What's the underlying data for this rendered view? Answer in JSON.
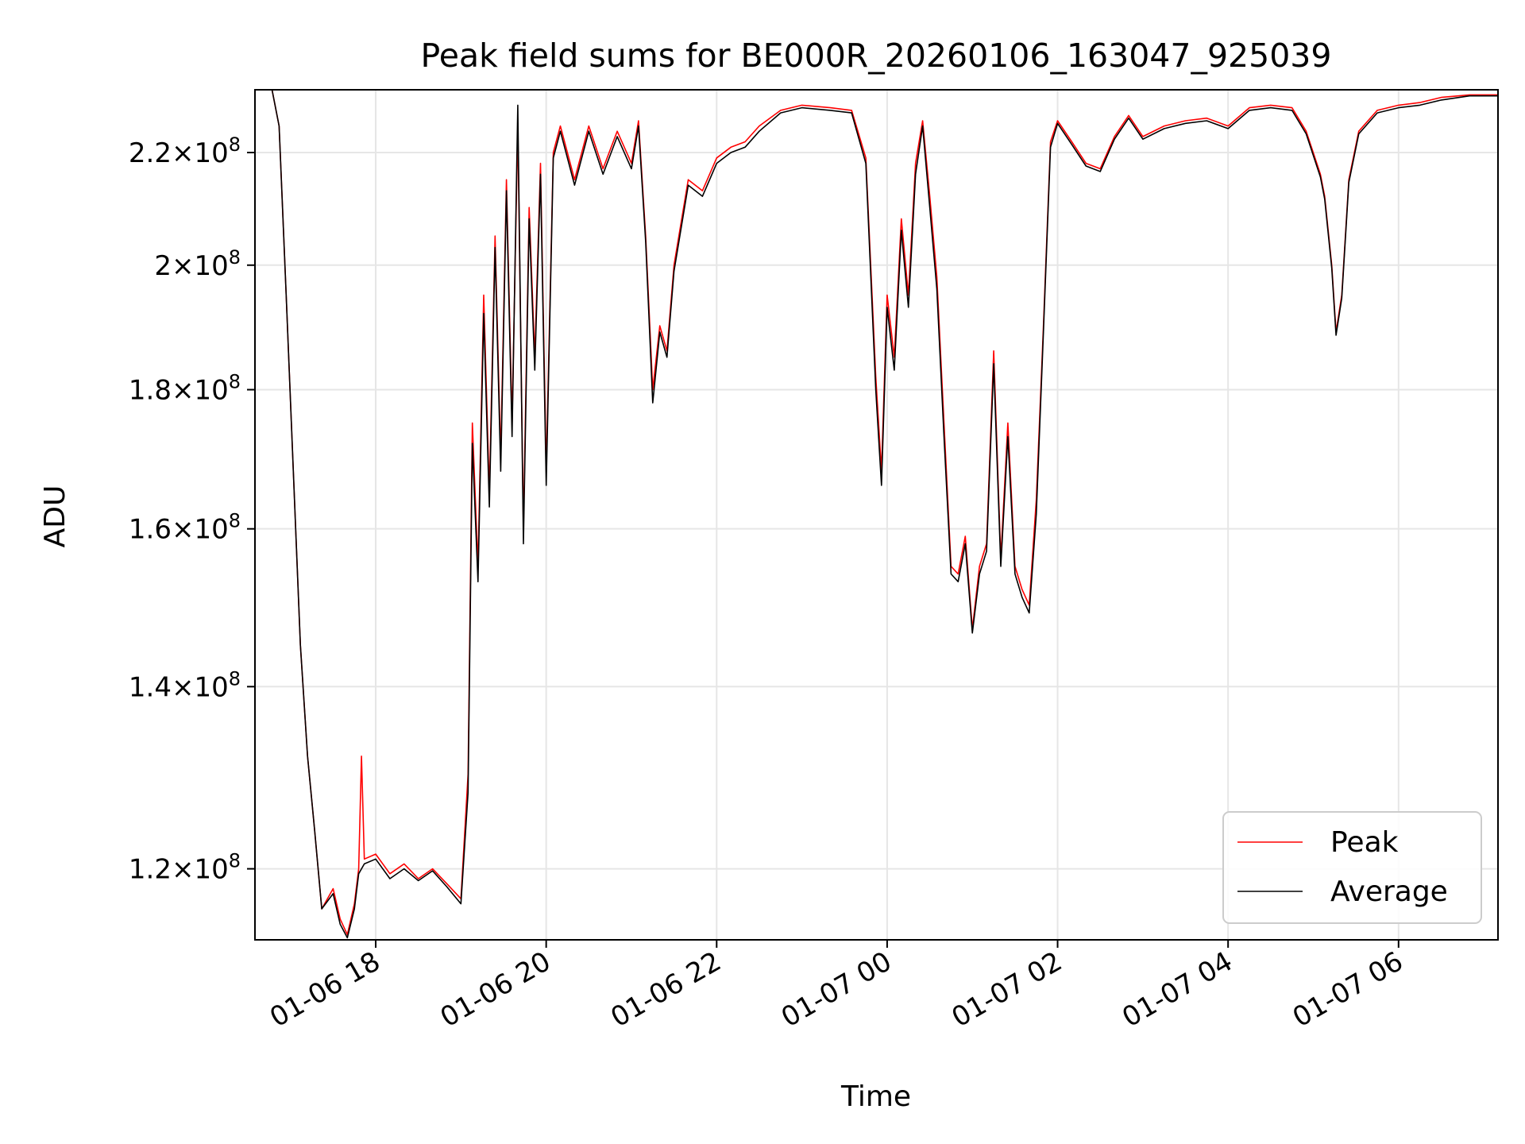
{
  "chart_data": {
    "type": "line",
    "title": "Peak field sums for BE000R_20260106_163047_925039",
    "xlabel": "Time",
    "ylabel": "ADU",
    "y_scale": "log",
    "ylim": [
      113000000,
      232000000
    ],
    "xlim": [
      "2026-01-06 16:35",
      "2026-01-07 07:10"
    ],
    "grid": true,
    "legend_position": "lower-right",
    "x_ticks": [
      {
        "value": "2026-01-06 18:00",
        "label": "01-06 18"
      },
      {
        "value": "2026-01-06 20:00",
        "label": "01-06 20"
      },
      {
        "value": "2026-01-06 22:00",
        "label": "01-06 22"
      },
      {
        "value": "2026-01-07 00:00",
        "label": "01-07 00"
      },
      {
        "value": "2026-01-07 02:00",
        "label": "01-07 02"
      },
      {
        "value": "2026-01-07 04:00",
        "label": "01-07 04"
      },
      {
        "value": "2026-01-07 06:00",
        "label": "01-07 06"
      }
    ],
    "y_ticks": [
      {
        "value": 120000000,
        "mantissa": "1.2",
        "exponent": "8"
      },
      {
        "value": 140000000,
        "mantissa": "1.4",
        "exponent": "8"
      },
      {
        "value": 160000000,
        "mantissa": "1.6",
        "exponent": "8"
      },
      {
        "value": 180000000,
        "mantissa": "1.8",
        "exponent": "8"
      },
      {
        "value": 200000000,
        "mantissa": "2",
        "exponent": "8"
      },
      {
        "value": 220000000,
        "mantissa": "2.2",
        "exponent": "8"
      }
    ],
    "series": [
      {
        "name": "Peak",
        "color": "#ff0000",
        "points": [
          [
            "2026-01-06 16:47",
            232000000
          ],
          [
            "2026-01-06 16:52",
            225000000
          ],
          [
            "2026-01-06 16:57",
            195000000
          ],
          [
            "2026-01-06 17:02",
            168000000
          ],
          [
            "2026-01-06 17:07",
            145000000
          ],
          [
            "2026-01-06 17:12",
            132000000
          ],
          [
            "2026-01-06 17:17",
            124000000
          ],
          [
            "2026-01-06 17:22",
            116000000
          ],
          [
            "2026-01-06 17:30",
            118000000
          ],
          [
            "2026-01-06 17:35",
            115000000
          ],
          [
            "2026-01-06 17:40",
            113500000
          ],
          [
            "2026-01-06 17:45",
            116500000
          ],
          [
            "2026-01-06 17:48",
            120000000
          ],
          [
            "2026-01-06 17:50",
            132000000
          ],
          [
            "2026-01-06 17:52",
            121000000
          ],
          [
            "2026-01-06 18:00",
            121500000
          ],
          [
            "2026-01-06 18:10",
            119500000
          ],
          [
            "2026-01-06 18:20",
            120500000
          ],
          [
            "2026-01-06 18:30",
            119000000
          ],
          [
            "2026-01-06 18:40",
            120000000
          ],
          [
            "2026-01-06 18:50",
            118500000
          ],
          [
            "2026-01-06 19:00",
            117000000
          ],
          [
            "2026-01-06 19:05",
            130000000
          ],
          [
            "2026-01-06 19:08",
            175000000
          ],
          [
            "2026-01-06 19:12",
            155000000
          ],
          [
            "2026-01-06 19:16",
            195000000
          ],
          [
            "2026-01-06 19:20",
            165000000
          ],
          [
            "2026-01-06 19:24",
            205000000
          ],
          [
            "2026-01-06 19:28",
            170000000
          ],
          [
            "2026-01-06 19:32",
            215000000
          ],
          [
            "2026-01-06 19:36",
            175000000
          ],
          [
            "2026-01-06 19:40",
            225000000
          ],
          [
            "2026-01-06 19:44",
            160000000
          ],
          [
            "2026-01-06 19:48",
            210000000
          ],
          [
            "2026-01-06 19:52",
            185000000
          ],
          [
            "2026-01-06 19:56",
            218000000
          ],
          [
            "2026-01-06 20:00",
            168000000
          ],
          [
            "2026-01-06 20:05",
            220000000
          ],
          [
            "2026-01-06 20:10",
            225000000
          ],
          [
            "2026-01-06 20:20",
            215000000
          ],
          [
            "2026-01-06 20:30",
            225000000
          ],
          [
            "2026-01-06 20:40",
            217000000
          ],
          [
            "2026-01-06 20:50",
            224000000
          ],
          [
            "2026-01-06 21:00",
            218000000
          ],
          [
            "2026-01-06 21:05",
            226000000
          ],
          [
            "2026-01-06 21:10",
            205000000
          ],
          [
            "2026-01-06 21:15",
            180000000
          ],
          [
            "2026-01-06 21:20",
            190000000
          ],
          [
            "2026-01-06 21:25",
            186000000
          ],
          [
            "2026-01-06 21:30",
            200000000
          ],
          [
            "2026-01-06 21:40",
            215000000
          ],
          [
            "2026-01-06 21:50",
            213000000
          ],
          [
            "2026-01-06 22:00",
            219000000
          ],
          [
            "2026-01-06 22:10",
            221000000
          ],
          [
            "2026-01-06 22:20",
            222000000
          ],
          [
            "2026-01-06 22:30",
            225000000
          ],
          [
            "2026-01-06 22:45",
            228000000
          ],
          [
            "2026-01-06 23:00",
            229000000
          ],
          [
            "2026-01-06 23:20",
            228500000
          ],
          [
            "2026-01-06 23:35",
            228000000
          ],
          [
            "2026-01-06 23:45",
            219000000
          ],
          [
            "2026-01-06 23:52",
            182000000
          ],
          [
            "2026-01-06 23:56",
            168000000
          ],
          [
            "2026-01-07 00:00",
            195000000
          ],
          [
            "2026-01-07 00:05",
            185000000
          ],
          [
            "2026-01-07 00:10",
            208000000
          ],
          [
            "2026-01-07 00:15",
            195000000
          ],
          [
            "2026-01-07 00:20",
            218000000
          ],
          [
            "2026-01-07 00:25",
            226000000
          ],
          [
            "2026-01-07 00:30",
            212000000
          ],
          [
            "2026-01-07 00:35",
            198000000
          ],
          [
            "2026-01-07 00:40",
            175000000
          ],
          [
            "2026-01-07 00:45",
            155000000
          ],
          [
            "2026-01-07 00:50",
            154000000
          ],
          [
            "2026-01-07 00:55",
            159000000
          ],
          [
            "2026-01-07 01:00",
            147000000
          ],
          [
            "2026-01-07 01:05",
            155000000
          ],
          [
            "2026-01-07 01:10",
            158000000
          ],
          [
            "2026-01-07 01:15",
            186000000
          ],
          [
            "2026-01-07 01:20",
            156000000
          ],
          [
            "2026-01-07 01:25",
            175000000
          ],
          [
            "2026-01-07 01:30",
            155000000
          ],
          [
            "2026-01-07 01:35",
            152000000
          ],
          [
            "2026-01-07 01:40",
            150000000
          ],
          [
            "2026-01-07 01:45",
            164000000
          ],
          [
            "2026-01-07 01:50",
            190000000
          ],
          [
            "2026-01-07 01:55",
            222000000
          ],
          [
            "2026-01-07 02:00",
            226000000
          ],
          [
            "2026-01-07 02:10",
            222000000
          ],
          [
            "2026-01-07 02:20",
            218000000
          ],
          [
            "2026-01-07 02:30",
            217000000
          ],
          [
            "2026-01-07 02:40",
            223000000
          ],
          [
            "2026-01-07 02:50",
            227000000
          ],
          [
            "2026-01-07 03:00",
            223000000
          ],
          [
            "2026-01-07 03:15",
            225000000
          ],
          [
            "2026-01-07 03:30",
            226000000
          ],
          [
            "2026-01-07 03:45",
            226500000
          ],
          [
            "2026-01-07 04:00",
            225000000
          ],
          [
            "2026-01-07 04:15",
            228500000
          ],
          [
            "2026-01-07 04:30",
            229000000
          ],
          [
            "2026-01-07 04:45",
            228500000
          ],
          [
            "2026-01-07 04:55",
            224000000
          ],
          [
            "2026-01-07 05:05",
            216000000
          ],
          [
            "2026-01-07 05:08",
            212000000
          ],
          [
            "2026-01-07 05:13",
            200000000
          ],
          [
            "2026-01-07 05:16",
            189000000
          ],
          [
            "2026-01-07 05:20",
            195000000
          ],
          [
            "2026-01-07 05:25",
            215000000
          ],
          [
            "2026-01-07 05:32",
            224000000
          ],
          [
            "2026-01-07 05:45",
            228000000
          ],
          [
            "2026-01-07 06:00",
            229000000
          ],
          [
            "2026-01-07 06:15",
            229500000
          ],
          [
            "2026-01-07 06:30",
            230500000
          ],
          [
            "2026-01-07 06:50",
            231000000
          ],
          [
            "2026-01-07 07:10",
            231000000
          ]
        ]
      },
      {
        "name": "Average",
        "color": "#000000",
        "points": [
          [
            "2026-01-06 16:47",
            232000000
          ],
          [
            "2026-01-06 16:52",
            225000000
          ],
          [
            "2026-01-06 16:57",
            195000000
          ],
          [
            "2026-01-06 17:02",
            168000000
          ],
          [
            "2026-01-06 17:07",
            145000000
          ],
          [
            "2026-01-06 17:12",
            132000000
          ],
          [
            "2026-01-06 17:17",
            124000000
          ],
          [
            "2026-01-06 17:22",
            116000000
          ],
          [
            "2026-01-06 17:30",
            117500000
          ],
          [
            "2026-01-06 17:35",
            114500000
          ],
          [
            "2026-01-06 17:40",
            113200000
          ],
          [
            "2026-01-06 17:45",
            116000000
          ],
          [
            "2026-01-06 17:48",
            119500000
          ],
          [
            "2026-01-06 17:52",
            120500000
          ],
          [
            "2026-01-06 18:00",
            121000000
          ],
          [
            "2026-01-06 18:10",
            119000000
          ],
          [
            "2026-01-06 18:20",
            120000000
          ],
          [
            "2026-01-06 18:30",
            118800000
          ],
          [
            "2026-01-06 18:40",
            119800000
          ],
          [
            "2026-01-06 18:50",
            118200000
          ],
          [
            "2026-01-06 19:00",
            116500000
          ],
          [
            "2026-01-06 19:05",
            128000000
          ],
          [
            "2026-01-06 19:08",
            172000000
          ],
          [
            "2026-01-06 19:12",
            153000000
          ],
          [
            "2026-01-06 19:16",
            192000000
          ],
          [
            "2026-01-06 19:20",
            163000000
          ],
          [
            "2026-01-06 19:24",
            203000000
          ],
          [
            "2026-01-06 19:28",
            168000000
          ],
          [
            "2026-01-06 19:32",
            213000000
          ],
          [
            "2026-01-06 19:36",
            173000000
          ],
          [
            "2026-01-06 19:40",
            229000000
          ],
          [
            "2026-01-06 19:44",
            158000000
          ],
          [
            "2026-01-06 19:48",
            208000000
          ],
          [
            "2026-01-06 19:52",
            183000000
          ],
          [
            "2026-01-06 19:56",
            216000000
          ],
          [
            "2026-01-06 20:00",
            166000000
          ],
          [
            "2026-01-06 20:05",
            219000000
          ],
          [
            "2026-01-06 20:10",
            224000000
          ],
          [
            "2026-01-06 20:20",
            214000000
          ],
          [
            "2026-01-06 20:30",
            224000000
          ],
          [
            "2026-01-06 20:40",
            216000000
          ],
          [
            "2026-01-06 20:50",
            223000000
          ],
          [
            "2026-01-06 21:00",
            217000000
          ],
          [
            "2026-01-06 21:05",
            225000000
          ],
          [
            "2026-01-06 21:10",
            204000000
          ],
          [
            "2026-01-06 21:15",
            178000000
          ],
          [
            "2026-01-06 21:20",
            189000000
          ],
          [
            "2026-01-06 21:25",
            185000000
          ],
          [
            "2026-01-06 21:30",
            199000000
          ],
          [
            "2026-01-06 21:40",
            214000000
          ],
          [
            "2026-01-06 21:50",
            212000000
          ],
          [
            "2026-01-06 22:00",
            218000000
          ],
          [
            "2026-01-06 22:10",
            220000000
          ],
          [
            "2026-01-06 22:20",
            221000000
          ],
          [
            "2026-01-06 22:30",
            224000000
          ],
          [
            "2026-01-06 22:45",
            227500000
          ],
          [
            "2026-01-06 23:00",
            228500000
          ],
          [
            "2026-01-06 23:20",
            228000000
          ],
          [
            "2026-01-06 23:35",
            227500000
          ],
          [
            "2026-01-06 23:45",
            218000000
          ],
          [
            "2026-01-06 23:52",
            180000000
          ],
          [
            "2026-01-06 23:56",
            166000000
          ],
          [
            "2026-01-07 00:00",
            193000000
          ],
          [
            "2026-01-07 00:05",
            183000000
          ],
          [
            "2026-01-07 00:10",
            206000000
          ],
          [
            "2026-01-07 00:15",
            193000000
          ],
          [
            "2026-01-07 00:20",
            216000000
          ],
          [
            "2026-01-07 00:25",
            225000000
          ],
          [
            "2026-01-07 00:30",
            210000000
          ],
          [
            "2026-01-07 00:35",
            196000000
          ],
          [
            "2026-01-07 00:40",
            173000000
          ],
          [
            "2026-01-07 00:45",
            154000000
          ],
          [
            "2026-01-07 00:50",
            153000000
          ],
          [
            "2026-01-07 00:55",
            158000000
          ],
          [
            "2026-01-07 01:00",
            146500000
          ],
          [
            "2026-01-07 01:05",
            154000000
          ],
          [
            "2026-01-07 01:10",
            157000000
          ],
          [
            "2026-01-07 01:15",
            184000000
          ],
          [
            "2026-01-07 01:20",
            155000000
          ],
          [
            "2026-01-07 01:25",
            173000000
          ],
          [
            "2026-01-07 01:30",
            154000000
          ],
          [
            "2026-01-07 01:35",
            151000000
          ],
          [
            "2026-01-07 01:40",
            149000000
          ],
          [
            "2026-01-07 01:45",
            162000000
          ],
          [
            "2026-01-07 01:50",
            189000000
          ],
          [
            "2026-01-07 01:55",
            221000000
          ],
          [
            "2026-01-07 02:00",
            225500000
          ],
          [
            "2026-01-07 02:10",
            221500000
          ],
          [
            "2026-01-07 02:20",
            217500000
          ],
          [
            "2026-01-07 02:30",
            216500000
          ],
          [
            "2026-01-07 02:40",
            222500000
          ],
          [
            "2026-01-07 02:50",
            226500000
          ],
          [
            "2026-01-07 03:00",
            222500000
          ],
          [
            "2026-01-07 03:15",
            224500000
          ],
          [
            "2026-01-07 03:30",
            225500000
          ],
          [
            "2026-01-07 03:45",
            226000000
          ],
          [
            "2026-01-07 04:00",
            224500000
          ],
          [
            "2026-01-07 04:15",
            228000000
          ],
          [
            "2026-01-07 04:30",
            228500000
          ],
          [
            "2026-01-07 04:45",
            228000000
          ],
          [
            "2026-01-07 04:55",
            223500000
          ],
          [
            "2026-01-07 05:05",
            215500000
          ],
          [
            "2026-01-07 05:08",
            211500000
          ],
          [
            "2026-01-07 05:13",
            199500000
          ],
          [
            "2026-01-07 05:16",
            188500000
          ],
          [
            "2026-01-07 05:20",
            194500000
          ],
          [
            "2026-01-07 05:25",
            214500000
          ],
          [
            "2026-01-07 05:32",
            223500000
          ],
          [
            "2026-01-07 05:45",
            227500000
          ],
          [
            "2026-01-07 06:00",
            228500000
          ],
          [
            "2026-01-07 06:15",
            229000000
          ],
          [
            "2026-01-07 06:30",
            230000000
          ],
          [
            "2026-01-07 06:50",
            230800000
          ],
          [
            "2026-01-07 07:10",
            230800000
          ]
        ]
      }
    ]
  }
}
